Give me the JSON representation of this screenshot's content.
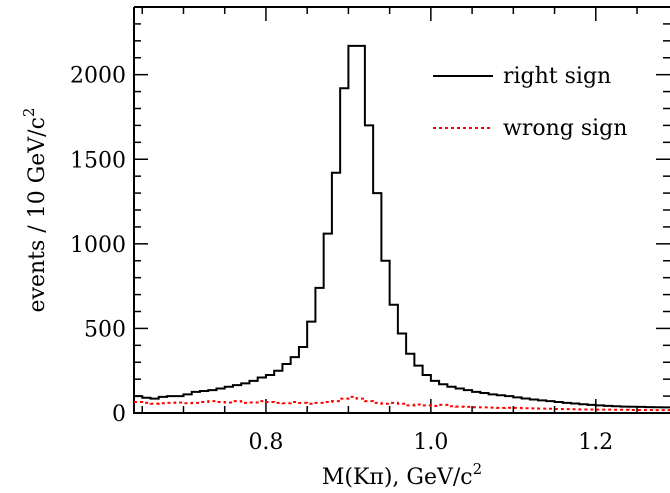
{
  "chart_data": {
    "type": "line",
    "xlabel_main": "M(Kπ),  GeV/c",
    "xlabel_sup": "2",
    "ylabel_main": "events  /  10  GeV/c",
    "ylabel_sup": "2",
    "xlim": [
      0.64,
      1.29
    ],
    "ylim": [
      0,
      2400
    ],
    "x_ticks": [
      0.8,
      1.0,
      1.2
    ],
    "x_tick_labels": [
      "0.8",
      "1.0",
      "1.2"
    ],
    "y_ticks": [
      0,
      500,
      1000,
      1500,
      2000
    ],
    "y_tick_labels": [
      "0",
      "500",
      "1000",
      "1500",
      "2000"
    ],
    "bin_width": 0.01,
    "legend_position": "top-right",
    "series": [
      {
        "name": "right sign",
        "style": "solid",
        "color": "#000000",
        "bin_edges_start": 0.64,
        "values": [
          100,
          90,
          85,
          95,
          100,
          100,
          110,
          125,
          130,
          135,
          145,
          155,
          165,
          175,
          190,
          210,
          225,
          250,
          290,
          330,
          390,
          540,
          740,
          1060,
          1420,
          1920,
          2170,
          2170,
          1700,
          1300,
          900,
          640,
          470,
          350,
          280,
          225,
          190,
          170,
          155,
          145,
          135,
          125,
          118,
          110,
          105,
          100,
          92,
          86,
          80,
          75,
          70,
          65,
          60,
          56,
          52,
          48,
          45,
          42,
          40,
          38,
          37,
          36,
          35,
          34,
          33
        ]
      },
      {
        "name": "wrong sign",
        "style": "dotted",
        "color": "#ff0000",
        "bin_edges_start": 0.64,
        "values": [
          65,
          60,
          55,
          58,
          60,
          62,
          58,
          60,
          65,
          70,
          65,
          62,
          70,
          60,
          62,
          70,
          65,
          60,
          58,
          65,
          60,
          55,
          60,
          65,
          70,
          85,
          95,
          85,
          70,
          60,
          55,
          60,
          55,
          45,
          50,
          45,
          42,
          48,
          40,
          38,
          36,
          34,
          33,
          32,
          30,
          31,
          30,
          28,
          27,
          26,
          25,
          24,
          23,
          22,
          21,
          21,
          20,
          20,
          19,
          19,
          18,
          18,
          18,
          17,
          17
        ]
      }
    ]
  }
}
